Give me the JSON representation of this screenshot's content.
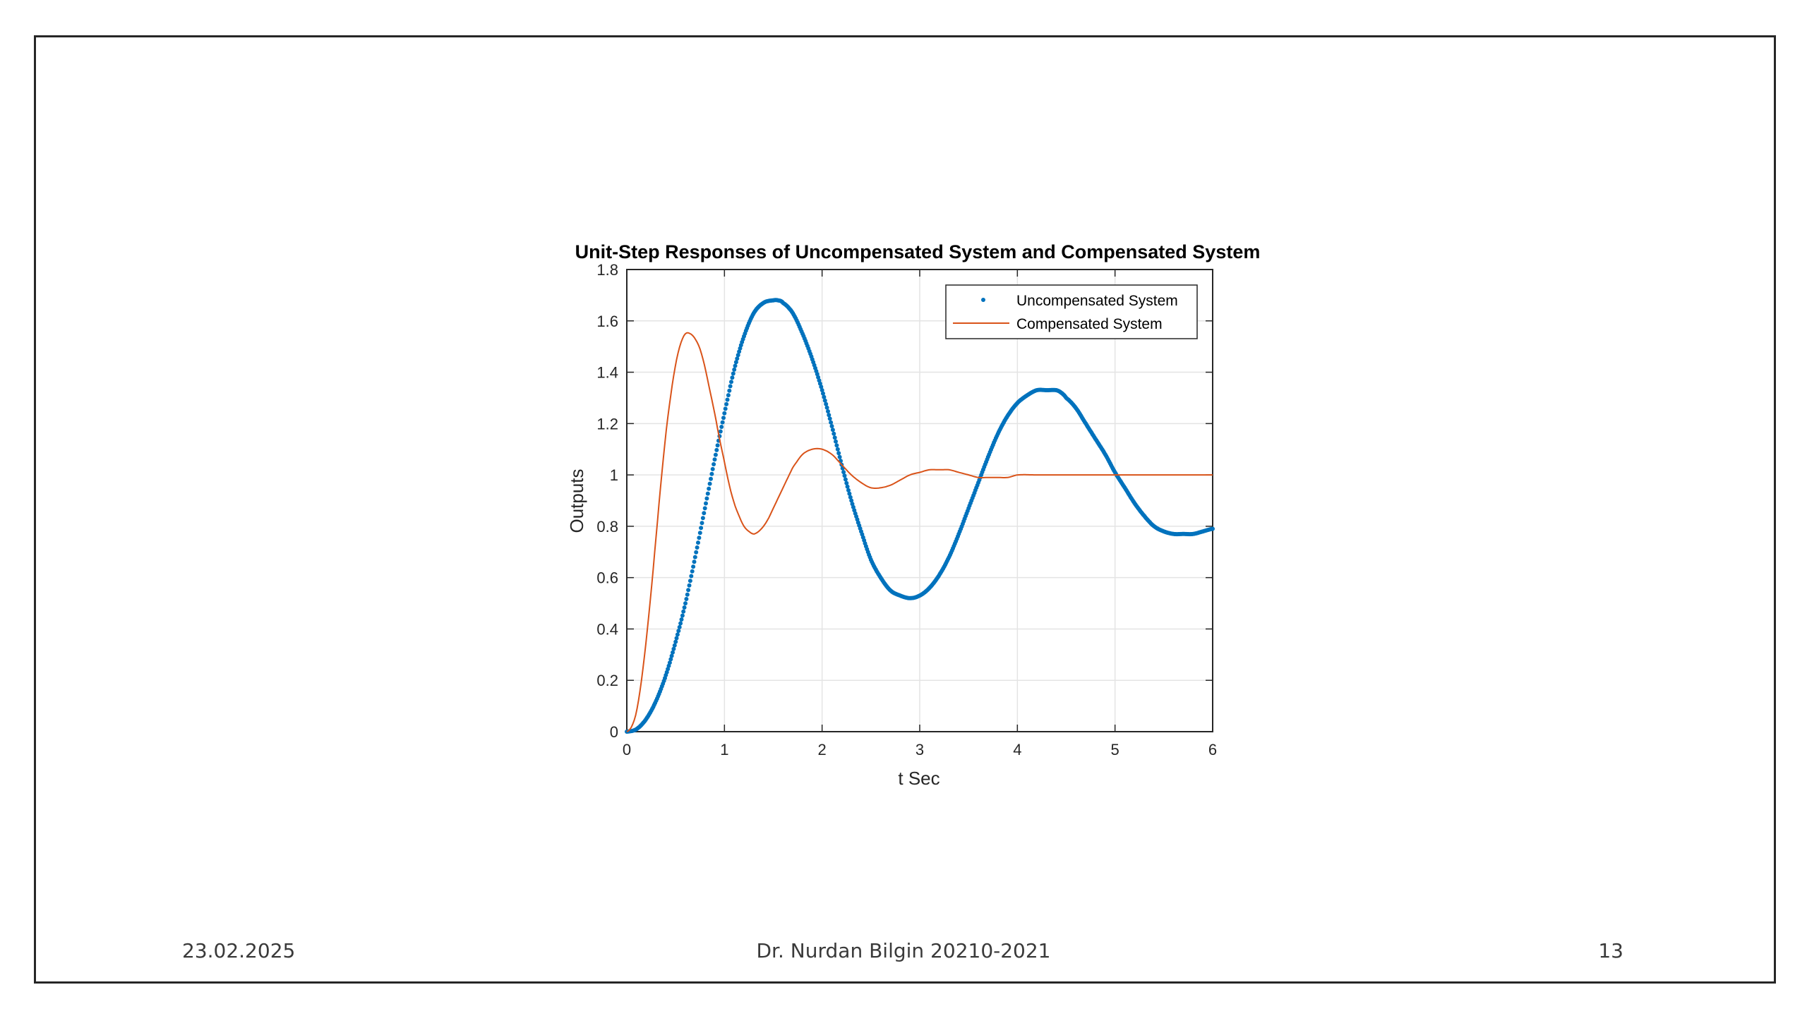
{
  "footer": {
    "date": "23.02.2025",
    "author": "Dr. Nurdan Bilgin 20210-2021",
    "page": "13"
  },
  "colors": {
    "uncompensated": "#0072BD",
    "compensated": "#D95319",
    "grid": "#e4e4e4",
    "axis": "#262626"
  },
  "chart_data": {
    "type": "line",
    "title": "Unit-Step Responses of Uncompensated System and Compensated System",
    "xlabel": "t Sec",
    "ylabel": "Outputs",
    "xlim": [
      0,
      6
    ],
    "ylim": [
      0,
      1.8
    ],
    "xticks": [
      0,
      1,
      2,
      3,
      4,
      5,
      6
    ],
    "xtick_labels": [
      "0",
      "1",
      "2",
      "3",
      "4",
      "5",
      "6"
    ],
    "yticks": [
      0,
      0.2,
      0.4,
      0.6,
      0.8,
      1,
      1.2,
      1.4,
      1.6,
      1.8
    ],
    "ytick_labels": [
      "0",
      "0.2",
      "0.4",
      "0.6",
      "0.8",
      "1",
      "1.2",
      "1.4",
      "1.6",
      "1.8"
    ],
    "grid": true,
    "legend_position": "top-right",
    "series": [
      {
        "name": "Uncompensated System",
        "style": "dots",
        "x": [
          0,
          0.1,
          0.2,
          0.3,
          0.4,
          0.5,
          0.6,
          0.7,
          0.8,
          0.9,
          1.0,
          1.1,
          1.2,
          1.3,
          1.4,
          1.5,
          1.55,
          1.6,
          1.7,
          1.8,
          1.9,
          2.0,
          2.1,
          2.2,
          2.3,
          2.4,
          2.5,
          2.6,
          2.7,
          2.8,
          2.9,
          3.0,
          3.1,
          3.2,
          3.3,
          3.4,
          3.5,
          3.6,
          3.7,
          3.8,
          3.9,
          4.0,
          4.1,
          4.2,
          4.3,
          4.4,
          4.45,
          4.5,
          4.6,
          4.7,
          4.8,
          4.9,
          5.0,
          5.1,
          5.2,
          5.3,
          5.4,
          5.5,
          5.6,
          5.7,
          5.8,
          5.9,
          6.0
        ],
        "y": [
          0,
          0.01,
          0.05,
          0.12,
          0.22,
          0.35,
          0.5,
          0.68,
          0.87,
          1.06,
          1.24,
          1.41,
          1.54,
          1.63,
          1.67,
          1.68,
          1.68,
          1.67,
          1.63,
          1.55,
          1.45,
          1.33,
          1.19,
          1.04,
          0.9,
          0.78,
          0.67,
          0.6,
          0.55,
          0.53,
          0.52,
          0.53,
          0.56,
          0.61,
          0.68,
          0.77,
          0.87,
          0.97,
          1.07,
          1.16,
          1.23,
          1.28,
          1.31,
          1.33,
          1.33,
          1.33,
          1.32,
          1.3,
          1.26,
          1.2,
          1.14,
          1.08,
          1.01,
          0.95,
          0.89,
          0.84,
          0.8,
          0.78,
          0.77,
          0.77,
          0.77,
          0.78,
          0.79
        ]
      },
      {
        "name": "Compensated System",
        "style": "line",
        "x": [
          0,
          0.05,
          0.1,
          0.15,
          0.2,
          0.25,
          0.3,
          0.35,
          0.4,
          0.45,
          0.5,
          0.55,
          0.6,
          0.65,
          0.7,
          0.75,
          0.8,
          0.85,
          0.9,
          0.95,
          1.0,
          1.05,
          1.1,
          1.15,
          1.2,
          1.25,
          1.3,
          1.35,
          1.4,
          1.45,
          1.5,
          1.55,
          1.6,
          1.65,
          1.7,
          1.8,
          1.9,
          2.0,
          2.1,
          2.2,
          2.3,
          2.4,
          2.5,
          2.6,
          2.7,
          2.8,
          2.9,
          3.0,
          3.1,
          3.2,
          3.3,
          3.4,
          3.5,
          3.6,
          3.7,
          3.8,
          3.9,
          4.0,
          4.2,
          4.4,
          4.6,
          4.8,
          5.0,
          5.2,
          5.4,
          5.6,
          5.8,
          6.0
        ],
        "y": [
          0,
          0.02,
          0.08,
          0.2,
          0.36,
          0.55,
          0.76,
          0.97,
          1.16,
          1.31,
          1.43,
          1.51,
          1.55,
          1.55,
          1.53,
          1.49,
          1.42,
          1.33,
          1.24,
          1.14,
          1.05,
          0.96,
          0.89,
          0.84,
          0.8,
          0.78,
          0.77,
          0.78,
          0.8,
          0.83,
          0.87,
          0.91,
          0.95,
          0.99,
          1.03,
          1.08,
          1.1,
          1.1,
          1.08,
          1.04,
          1.0,
          0.97,
          0.95,
          0.95,
          0.96,
          0.98,
          1.0,
          1.01,
          1.02,
          1.02,
          1.02,
          1.01,
          1.0,
          0.99,
          0.99,
          0.99,
          0.99,
          1.0,
          1.0,
          1.0,
          1.0,
          1.0,
          1.0,
          1.0,
          1.0,
          1.0,
          1.0,
          1.0
        ]
      }
    ]
  }
}
